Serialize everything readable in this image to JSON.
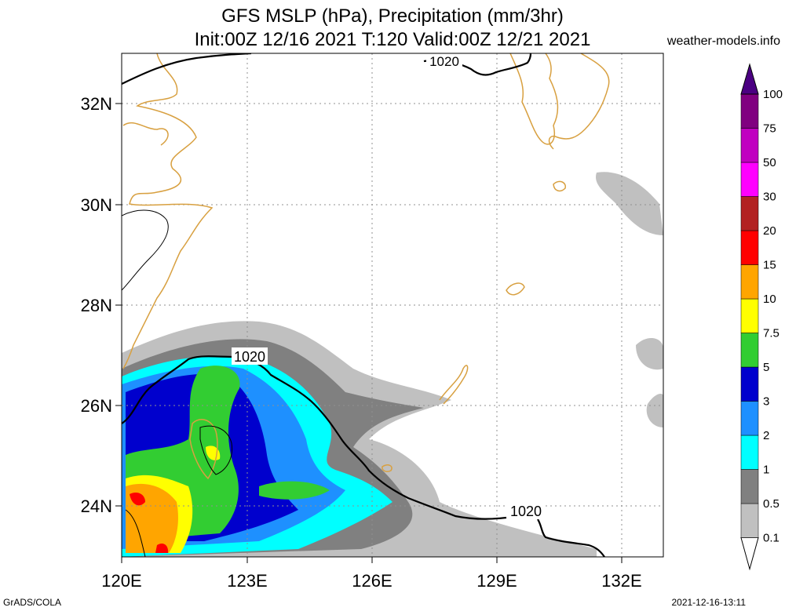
{
  "header": {
    "title_line1": "GFS MSLP (hPa), Precipitation (mm/3hr)",
    "title_line2": "Init:00Z 12/16 2021 T:120 Valid:00Z 12/21 2021",
    "site": "weather-models.info"
  },
  "footer": {
    "left": "GrADS/COLA",
    "right": "2021-12-16-13:11"
  },
  "chart_data": {
    "type": "map",
    "x_axis": {
      "range": [
        120,
        133
      ],
      "ticks": [
        120,
        123,
        126,
        129,
        132
      ],
      "tick_labels": [
        "120E",
        "123E",
        "126E",
        "129E",
        "132E"
      ]
    },
    "y_axis": {
      "range": [
        23,
        33
      ],
      "ticks": [
        24,
        26,
        28,
        30,
        32
      ],
      "tick_labels": [
        "24N",
        "26N",
        "28N",
        "30N",
        "32N"
      ]
    },
    "grid": true,
    "isobar_labels": [
      "1020",
      "1020",
      "1020"
    ],
    "colorbar": {
      "levels": [
        "0.1",
        "0.5",
        "1",
        "2",
        "3",
        "5",
        "7.5",
        "10",
        "15",
        "20",
        "30",
        "50",
        "75",
        "100"
      ],
      "colors": [
        "#ffffff",
        "#c0c0c0",
        "#808080",
        "#00ffff",
        "#1e90ff",
        "#0000cd",
        "#32cd32",
        "#ffff00",
        "#ffa500",
        "#ff0000",
        "#b22222",
        "#ff00ff",
        "#c000c0",
        "#800080",
        "#4b0082"
      ]
    },
    "coastline_color": "#d8a040"
  }
}
